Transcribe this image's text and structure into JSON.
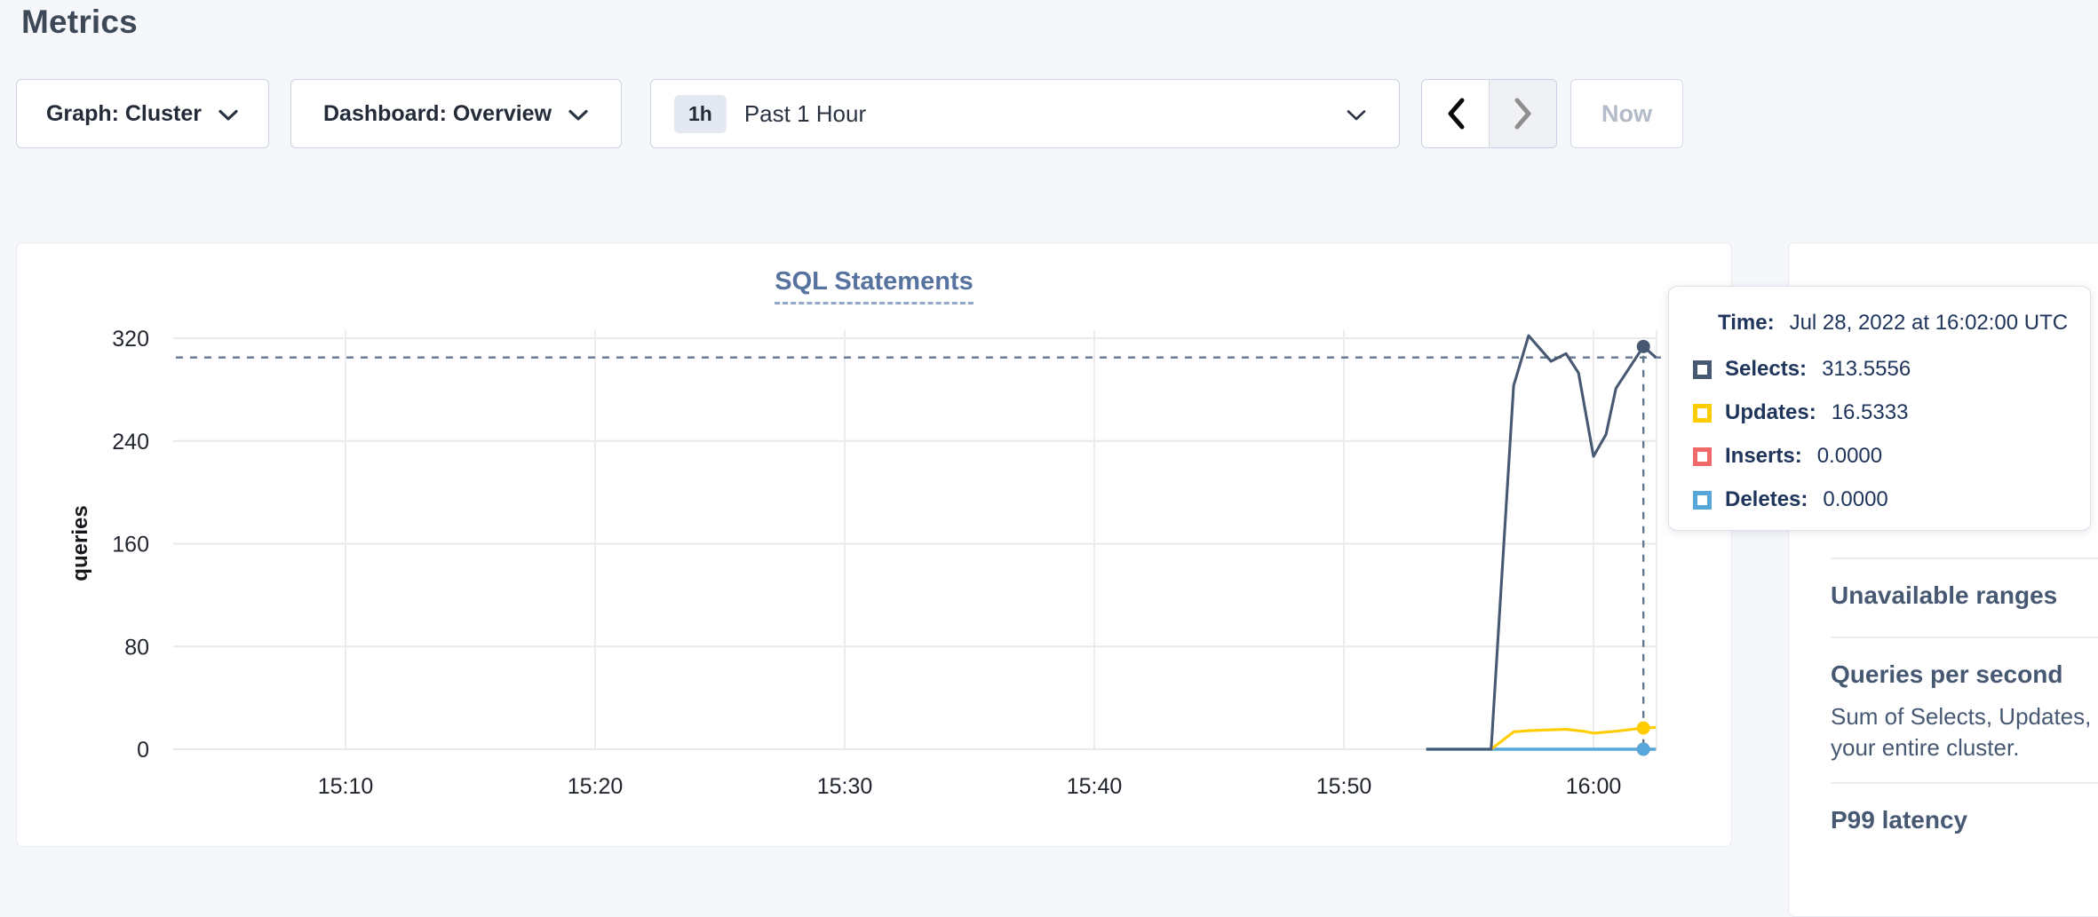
{
  "page": {
    "title": "Metrics"
  },
  "toolbar": {
    "graph_dropdown_label": "Graph: Cluster",
    "dashboard_dropdown_label": "Dashboard: Overview",
    "time_badge": "1h",
    "time_label": "Past 1 Hour",
    "now_button_label": "Now"
  },
  "tooltip": {
    "time_label": "Time:",
    "time_value": "Jul 28, 2022 at 16:02:00 UTC",
    "rows": [
      {
        "label": "Selects:",
        "value": "313.5556",
        "color": "#475872"
      },
      {
        "label": "Updates:",
        "value": "16.5333",
        "color": "#ffcd02"
      },
      {
        "label": "Inserts:",
        "value": "0.0000",
        "color": "#f16969"
      },
      {
        "label": "Deletes:",
        "value": "0.0000",
        "color": "#57a7db"
      }
    ]
  },
  "sidebar": {
    "items": [
      {
        "title": "Unavailable ranges"
      },
      {
        "title": "Queries per second",
        "description_lines": [
          "Sum of Selects, Updates, Inser",
          "your entire cluster."
        ]
      },
      {
        "title": "P99 latency"
      }
    ]
  },
  "chart_data": {
    "type": "line",
    "title": "SQL Statements",
    "ylabel": "queries",
    "ylim": [
      0,
      320
    ],
    "yticks": [
      0,
      80,
      160,
      240,
      320
    ],
    "grid": true,
    "xticks": [
      {
        "label": "15:10",
        "min": 10
      },
      {
        "label": "15:20",
        "min": 20
      },
      {
        "label": "15:30",
        "min": 30
      },
      {
        "label": "15:40",
        "min": 40
      },
      {
        "label": "15:50",
        "min": 50
      },
      {
        "label": "16:00",
        "min": 60
      }
    ],
    "x_unit": "minutes after 15:00, Jul 28 2022 UTC",
    "series": [
      {
        "name": "Inserts",
        "color": "#f16969",
        "points": [
          [
            53.3,
            0
          ],
          [
            62.5,
            0
          ]
        ]
      },
      {
        "name": "Deletes",
        "color": "#57a7db",
        "points": [
          [
            53.3,
            0
          ],
          [
            62.5,
            0
          ]
        ]
      },
      {
        "name": "Updates",
        "color": "#ffcd02",
        "points": [
          [
            53.3,
            0
          ],
          [
            55.9,
            0
          ],
          [
            56.8,
            13.5
          ],
          [
            57.4,
            14.5
          ],
          [
            58.9,
            15.5
          ],
          [
            59.6,
            14
          ],
          [
            60.0,
            12.5
          ],
          [
            60.9,
            14
          ],
          [
            62.0,
            16.5333
          ],
          [
            62.5,
            17
          ]
        ]
      },
      {
        "name": "Selects",
        "color": "#475872",
        "points": [
          [
            53.3,
            0
          ],
          [
            55.9,
            0
          ],
          [
            56.8,
            283
          ],
          [
            57.4,
            322
          ],
          [
            58.3,
            302
          ],
          [
            58.9,
            308
          ],
          [
            59.4,
            293
          ],
          [
            60.0,
            228
          ],
          [
            60.5,
            245
          ],
          [
            60.9,
            281
          ],
          [
            62.0,
            313.5556
          ],
          [
            62.5,
            305
          ]
        ]
      }
    ],
    "hover": {
      "time_min": 62,
      "time_label": "16:02:00",
      "values": {
        "Selects": 313.5556,
        "Updates": 16.5333,
        "Inserts": 0.0,
        "Deletes": 0.0
      },
      "crosshair_value": 305
    },
    "legend_position": "tooltip-only"
  }
}
